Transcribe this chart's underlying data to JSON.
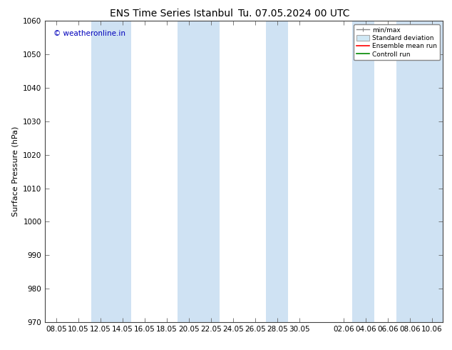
{
  "title_left": "ENS Time Series Istanbul",
  "title_right": "Tu. 07.05.2024 00 UTC",
  "ylabel": "Surface Pressure (hPa)",
  "ylim": [
    970,
    1060
  ],
  "yticks": [
    970,
    980,
    990,
    1000,
    1010,
    1020,
    1030,
    1040,
    1050,
    1060
  ],
  "xtick_labels": [
    "08.05",
    "10.05",
    "12.05",
    "14.05",
    "16.05",
    "18.05",
    "20.05",
    "22.05",
    "24.05",
    "26.05",
    "28.05",
    "30.05",
    "02.06",
    "04.06",
    "06.06",
    "08.06",
    "10.06"
  ],
  "watermark": "© weatheronline.in",
  "watermark_color": "#0000bb",
  "background_color": "#ffffff",
  "band_color": "#cfe2f3",
  "legend_items": [
    {
      "label": "min/max",
      "color": "#aaaaaa",
      "style": "errorbar"
    },
    {
      "label": "Standard deviation",
      "color": "#cccccc",
      "style": "box"
    },
    {
      "label": "Ensemble mean run",
      "color": "#ff0000",
      "style": "line"
    },
    {
      "label": "Controll run",
      "color": "#008800",
      "style": "line"
    }
  ],
  "title_fontsize": 10,
  "axis_fontsize": 8,
  "tick_fontsize": 7.5
}
